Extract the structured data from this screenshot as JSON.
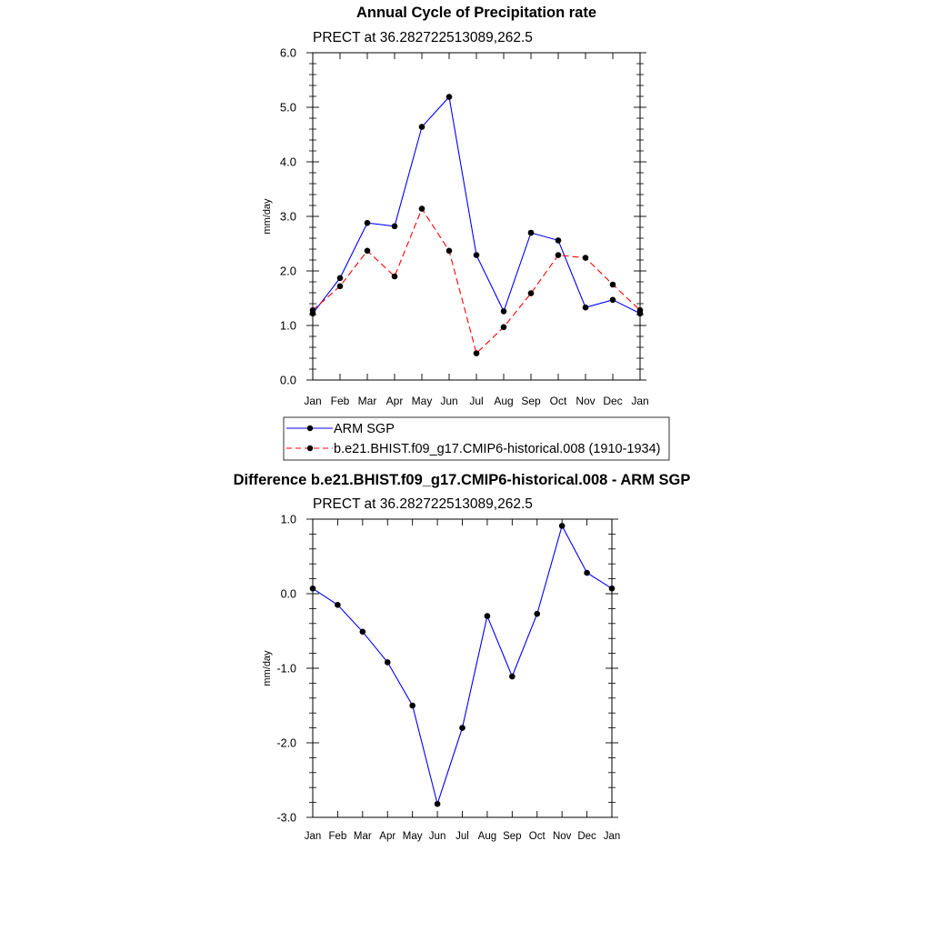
{
  "chart_data": [
    {
      "type": "line",
      "title": "Annual Cycle of Precipitation rate",
      "subtitle": "PRECT at 36.282722513089,262.5",
      "xlabel": "",
      "ylabel": "mm/day",
      "categories": [
        "Jan",
        "Feb",
        "Mar",
        "Apr",
        "May",
        "Jun",
        "Jul",
        "Aug",
        "Sep",
        "Oct",
        "Nov",
        "Dec",
        "Jan"
      ],
      "ylim": [
        0,
        6
      ],
      "yticks": [
        "0.0",
        "1.0",
        "2.0",
        "3.0",
        "4.0",
        "5.0",
        "6.0"
      ],
      "legend_position": "bottom",
      "series": [
        {
          "name": "ARM SGP",
          "color": "#0000ff",
          "dash": "solid",
          "values": [
            1.22,
            1.87,
            2.88,
            2.82,
            4.64,
            5.19,
            2.29,
            1.26,
            2.7,
            2.56,
            1.33,
            1.47,
            1.22
          ]
        },
        {
          "name": "b.e21.BHIST.f09_g17.CMIP6-historical.008 (1910-1934)",
          "color": "#ff0000",
          "dash": "dashed",
          "values": [
            1.28,
            1.72,
            2.37,
            1.9,
            3.14,
            2.37,
            0.49,
            0.97,
            1.59,
            2.29,
            2.24,
            1.75,
            1.28
          ]
        }
      ]
    },
    {
      "type": "line",
      "title": "Difference b.e21.BHIST.f09_g17.CMIP6-historical.008 - ARM SGP",
      "subtitle": "PRECT at 36.282722513089,262.5",
      "xlabel": "",
      "ylabel": "mm/day",
      "categories": [
        "Jan",
        "Feb",
        "Mar",
        "Apr",
        "May",
        "Jun",
        "Jul",
        "Aug",
        "Sep",
        "Oct",
        "Nov",
        "Dec",
        "Jan"
      ],
      "ylim": [
        -3,
        1
      ],
      "yticks": [
        "-3.0",
        "-2.0",
        "-1.0",
        "0.0",
        "1.0"
      ],
      "series": [
        {
          "name": "Difference",
          "color": "#0000ff",
          "dash": "solid",
          "values": [
            0.07,
            -0.15,
            -0.51,
            -0.92,
            -1.5,
            -2.82,
            -1.8,
            -0.3,
            -1.11,
            -0.27,
            0.91,
            0.28,
            0.07
          ]
        }
      ]
    }
  ]
}
